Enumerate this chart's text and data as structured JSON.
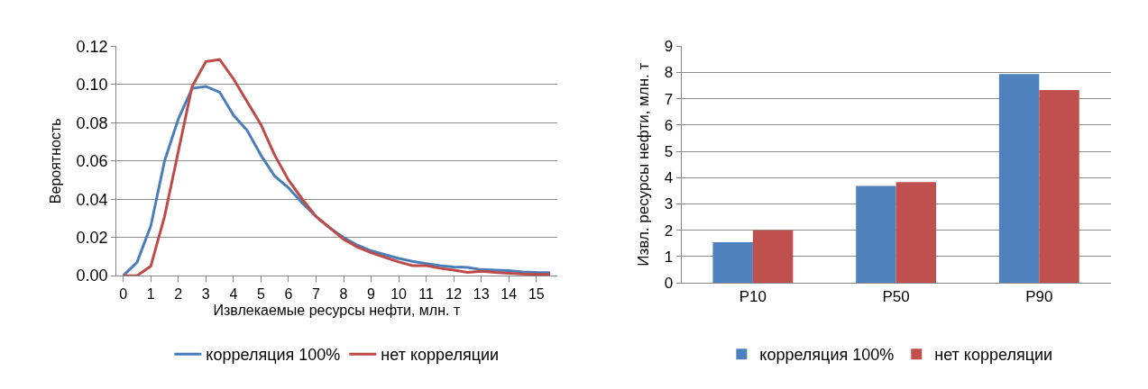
{
  "chart_data": [
    {
      "type": "line",
      "xlabel": "Извлекаемые ресурсы нефти, млн. т",
      "ylabel": "Вероятность",
      "x": [
        0,
        0.5,
        1,
        1.5,
        2,
        2.5,
        3,
        3.5,
        4,
        4.5,
        5,
        5.5,
        6,
        6.5,
        7,
        7.5,
        8,
        8.5,
        9,
        9.5,
        10,
        10.5,
        11,
        11.5,
        12,
        12.5,
        13,
        13.5,
        14,
        14.5,
        15,
        15.5
      ],
      "series": [
        {
          "name": "корреляция 100%",
          "color": "#4a7ebb",
          "values": [
            0,
            0.007,
            0.026,
            0.06,
            0.082,
            0.098,
            0.099,
            0.096,
            0.084,
            0.076,
            0.063,
            0.052,
            0.046,
            0.038,
            0.031,
            0.025,
            0.02,
            0.016,
            0.013,
            0.011,
            0.009,
            0.0075,
            0.0063,
            0.0053,
            0.0046,
            0.0043,
            0.0032,
            0.0029,
            0.0027,
            0.002,
            0.0017,
            0.0016
          ]
        },
        {
          "name": "нет корреляции",
          "color": "#be4b48",
          "values": [
            0,
            0,
            0.005,
            0.031,
            0.065,
            0.099,
            0.112,
            0.113,
            0.103,
            0.091,
            0.079,
            0.063,
            0.05,
            0.04,
            0.031,
            0.025,
            0.019,
            0.015,
            0.012,
            0.0096,
            0.0072,
            0.0053,
            0.0053,
            0.0039,
            0.0029,
            0.0017,
            0.0023,
            0.0017,
            0.0013,
            0.0009,
            0.0007,
            0.0007
          ]
        }
      ],
      "xlim": [
        -0.25,
        15.75
      ],
      "xticks": [
        0,
        1,
        2,
        3,
        4,
        5,
        6,
        7,
        8,
        9,
        10,
        11,
        12,
        13,
        14,
        15
      ],
      "ylim": [
        0,
        0.12
      ],
      "yticks": [
        {
          "value": 0,
          "label": "0.00"
        },
        {
          "value": 0.02,
          "label": "0.02"
        },
        {
          "value": 0.04,
          "label": "0.04"
        },
        {
          "value": 0.06,
          "label": "0.06"
        },
        {
          "value": 0.08,
          "label": "0.08"
        },
        {
          "value": 0.1,
          "label": "0.10"
        },
        {
          "value": 0.12,
          "label": "0.12"
        }
      ],
      "grid": "y",
      "legend": "bottom",
      "marker": "none",
      "line_style": "solid"
    },
    {
      "type": "bar",
      "ylabel": "Извл. ресурсы нефти, млн. т",
      "categories": [
        "P10",
        "P50",
        "P90"
      ],
      "series": [
        {
          "name": "корреляция 100%",
          "color": "#4f81bd",
          "values": [
            1.54,
            3.68,
            7.94
          ]
        },
        {
          "name": "нет корреляции",
          "color": "#c0504d",
          "values": [
            2.0,
            3.83,
            7.33
          ]
        }
      ],
      "ylim": [
        0,
        9
      ],
      "yticks": [
        0,
        1,
        2,
        3,
        4,
        5,
        6,
        7,
        8,
        9
      ],
      "grid": "y",
      "legend": "bottom"
    }
  ]
}
